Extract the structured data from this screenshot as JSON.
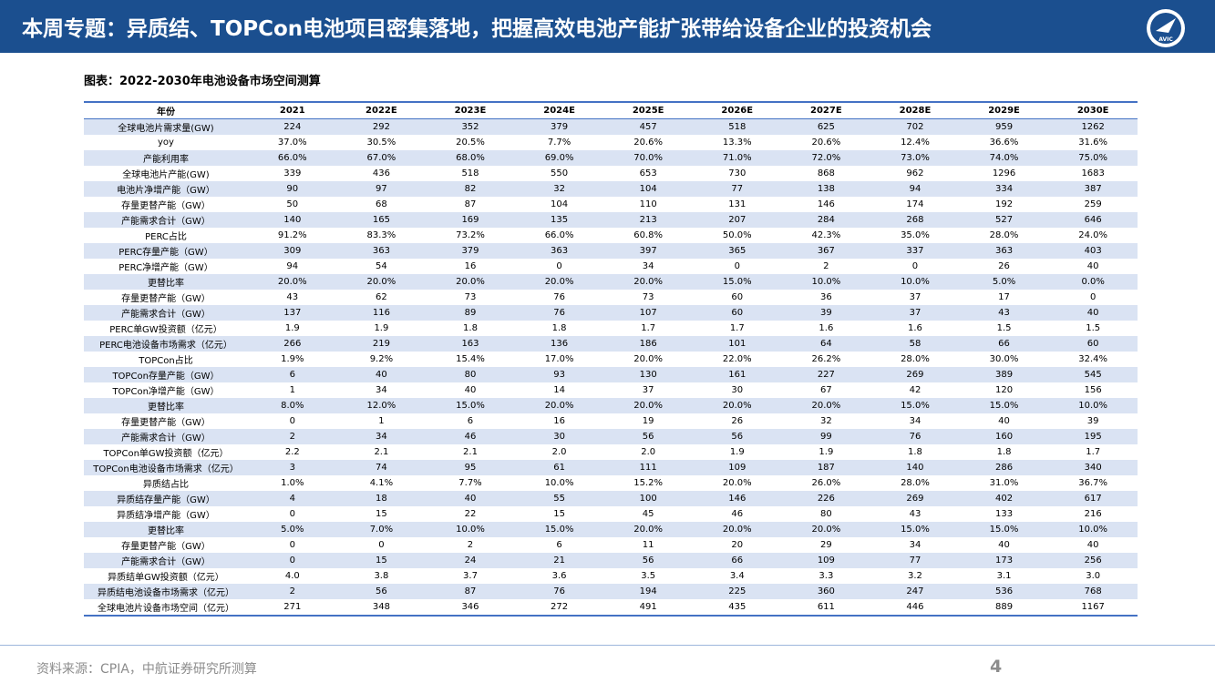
{
  "header": {
    "title": "本周专题：异质结、TOPCon电池项目密集落地，把握高效电池产能扩张带给设备企业的投资机会",
    "logo": "AVIC"
  },
  "figure_label": "图表：2022-2030年电池设备市场空间测算",
  "table": {
    "columns": [
      "年份",
      "2021",
      "2022E",
      "2023E",
      "2024E",
      "2025E",
      "2026E",
      "2027E",
      "2028E",
      "2029E",
      "2030E"
    ],
    "rows": [
      [
        "全球电池片需求量(GW)",
        "224",
        "292",
        "352",
        "379",
        "457",
        "518",
        "625",
        "702",
        "959",
        "1262"
      ],
      [
        "yoy",
        "37.0%",
        "30.5%",
        "20.5%",
        "7.7%",
        "20.6%",
        "13.3%",
        "20.6%",
        "12.4%",
        "36.6%",
        "31.6%"
      ],
      [
        "产能利用率",
        "66.0%",
        "67.0%",
        "68.0%",
        "69.0%",
        "70.0%",
        "71.0%",
        "72.0%",
        "73.0%",
        "74.0%",
        "75.0%"
      ],
      [
        "全球电池片产能(GW)",
        "339",
        "436",
        "518",
        "550",
        "653",
        "730",
        "868",
        "962",
        "1296",
        "1683"
      ],
      [
        "电池片净增产能（GW）",
        "90",
        "97",
        "82",
        "32",
        "104",
        "77",
        "138",
        "94",
        "334",
        "387"
      ],
      [
        "存量更替产能（GW）",
        "50",
        "68",
        "87",
        "104",
        "110",
        "131",
        "146",
        "174",
        "192",
        "259"
      ],
      [
        "产能需求合计（GW）",
        "140",
        "165",
        "169",
        "135",
        "213",
        "207",
        "284",
        "268",
        "527",
        "646"
      ],
      [
        "PERC占比",
        "91.2%",
        "83.3%",
        "73.2%",
        "66.0%",
        "60.8%",
        "50.0%",
        "42.3%",
        "35.0%",
        "28.0%",
        "24.0%"
      ],
      [
        "PERC存量产能（GW）",
        "309",
        "363",
        "379",
        "363",
        "397",
        "365",
        "367",
        "337",
        "363",
        "403"
      ],
      [
        "PERC净增产能（GW）",
        "94",
        "54",
        "16",
        "0",
        "34",
        "0",
        "2",
        "0",
        "26",
        "40"
      ],
      [
        "更替比率",
        "20.0%",
        "20.0%",
        "20.0%",
        "20.0%",
        "20.0%",
        "15.0%",
        "10.0%",
        "10.0%",
        "5.0%",
        "0.0%"
      ],
      [
        "存量更替产能（GW）",
        "43",
        "62",
        "73",
        "76",
        "73",
        "60",
        "36",
        "37",
        "17",
        "0"
      ],
      [
        "产能需求合计（GW）",
        "137",
        "116",
        "89",
        "76",
        "107",
        "60",
        "39",
        "37",
        "43",
        "40"
      ],
      [
        "PERC单GW投资额（亿元）",
        "1.9",
        "1.9",
        "1.8",
        "1.8",
        "1.7",
        "1.7",
        "1.6",
        "1.6",
        "1.5",
        "1.5"
      ],
      [
        "PERC电池设备市场需求（亿元）",
        "266",
        "219",
        "163",
        "136",
        "186",
        "101",
        "64",
        "58",
        "66",
        "60"
      ],
      [
        "TOPCon占比",
        "1.9%",
        "9.2%",
        "15.4%",
        "17.0%",
        "20.0%",
        "22.0%",
        "26.2%",
        "28.0%",
        "30.0%",
        "32.4%"
      ],
      [
        "TOPCon存量产能（GW）",
        "6",
        "40",
        "80",
        "93",
        "130",
        "161",
        "227",
        "269",
        "389",
        "545"
      ],
      [
        "TOPCon净增产能（GW）",
        "1",
        "34",
        "40",
        "14",
        "37",
        "30",
        "67",
        "42",
        "120",
        "156"
      ],
      [
        "更替比率",
        "8.0%",
        "12.0%",
        "15.0%",
        "20.0%",
        "20.0%",
        "20.0%",
        "20.0%",
        "15.0%",
        "15.0%",
        "10.0%"
      ],
      [
        "存量更替产能（GW）",
        "0",
        "1",
        "6",
        "16",
        "19",
        "26",
        "32",
        "34",
        "40",
        "39"
      ],
      [
        "产能需求合计（GW）",
        "2",
        "34",
        "46",
        "30",
        "56",
        "56",
        "99",
        "76",
        "160",
        "195"
      ],
      [
        "TOPCon单GW投资额（亿元）",
        "2.2",
        "2.1",
        "2.1",
        "2.0",
        "2.0",
        "1.9",
        "1.9",
        "1.8",
        "1.8",
        "1.7"
      ],
      [
        "TOPCon电池设备市场需求（亿元）",
        "3",
        "74",
        "95",
        "61",
        "111",
        "109",
        "187",
        "140",
        "286",
        "340"
      ],
      [
        "异质结占比",
        "1.0%",
        "4.1%",
        "7.7%",
        "10.0%",
        "15.2%",
        "20.0%",
        "26.0%",
        "28.0%",
        "31.0%",
        "36.7%"
      ],
      [
        "异质结存量产能（GW）",
        "4",
        "18",
        "40",
        "55",
        "100",
        "146",
        "226",
        "269",
        "402",
        "617"
      ],
      [
        "异质结净增产能（GW）",
        "0",
        "15",
        "22",
        "15",
        "45",
        "46",
        "80",
        "43",
        "133",
        "216"
      ],
      [
        "更替比率",
        "5.0%",
        "7.0%",
        "10.0%",
        "15.0%",
        "20.0%",
        "20.0%",
        "20.0%",
        "15.0%",
        "15.0%",
        "10.0%"
      ],
      [
        "存量更替产能（GW）",
        "0",
        "0",
        "2",
        "6",
        "11",
        "20",
        "29",
        "34",
        "40",
        "40"
      ],
      [
        "产能需求合计（GW）",
        "0",
        "15",
        "24",
        "21",
        "56",
        "66",
        "109",
        "77",
        "173",
        "256"
      ],
      [
        "异质结单GW投资额（亿元）",
        "4.0",
        "3.8",
        "3.7",
        "3.6",
        "3.5",
        "3.4",
        "3.3",
        "3.2",
        "3.1",
        "3.0"
      ],
      [
        "异质结电池设备市场需求（亿元）",
        "2",
        "56",
        "87",
        "76",
        "194",
        "225",
        "360",
        "247",
        "536",
        "768"
      ],
      [
        "全球电池片设备市场空间（亿元）",
        "271",
        "348",
        "346",
        "272",
        "491",
        "435",
        "611",
        "446",
        "889",
        "1167"
      ]
    ]
  },
  "footer": {
    "source": "资料来源：CPIA，中航证券研究所测算",
    "page": "4"
  }
}
